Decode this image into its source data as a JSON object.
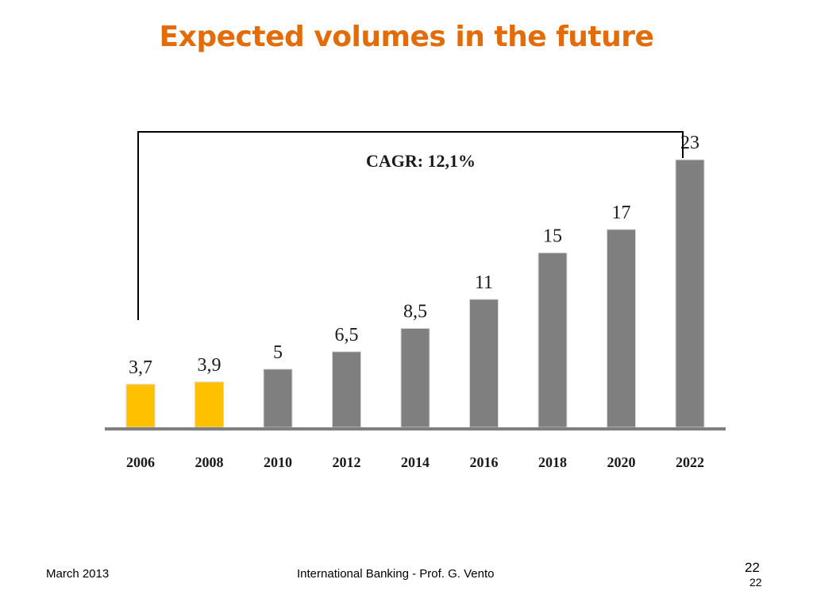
{
  "slide": {
    "title": "Expected volumes in the future"
  },
  "footer": {
    "date": "March 2013",
    "center": "International Banking - Prof. G. Vento",
    "page_number": "22",
    "page_number_small": "22"
  },
  "colors": {
    "title": "#E36C0A",
    "highlight_bar": "#FFC000",
    "projected_bar": "#7F7F7F"
  },
  "chart_data": {
    "type": "bar",
    "title": "",
    "xlabel": "",
    "ylabel": "",
    "ylim": [
      0,
      25
    ],
    "grid": false,
    "legend": "none",
    "categories": [
      "2006",
      "2008",
      "2010",
      "2012",
      "2014",
      "2016",
      "2018",
      "2020",
      "2022"
    ],
    "values": [
      3.7,
      3.9,
      5,
      6.5,
      8.5,
      11,
      15,
      17,
      23
    ],
    "value_labels": [
      "3,7",
      "3,9",
      "5",
      "6,5",
      "8,5",
      "11",
      "15",
      "17",
      "23"
    ],
    "bar_colors": [
      "#FFC000",
      "#FFC000",
      "#7F7F7F",
      "#7F7F7F",
      "#7F7F7F",
      "#7F7F7F",
      "#7F7F7F",
      "#7F7F7F",
      "#7F7F7F"
    ],
    "annotation": {
      "text": "CAGR: 12,1%",
      "from": "2006",
      "to": "2022"
    }
  }
}
